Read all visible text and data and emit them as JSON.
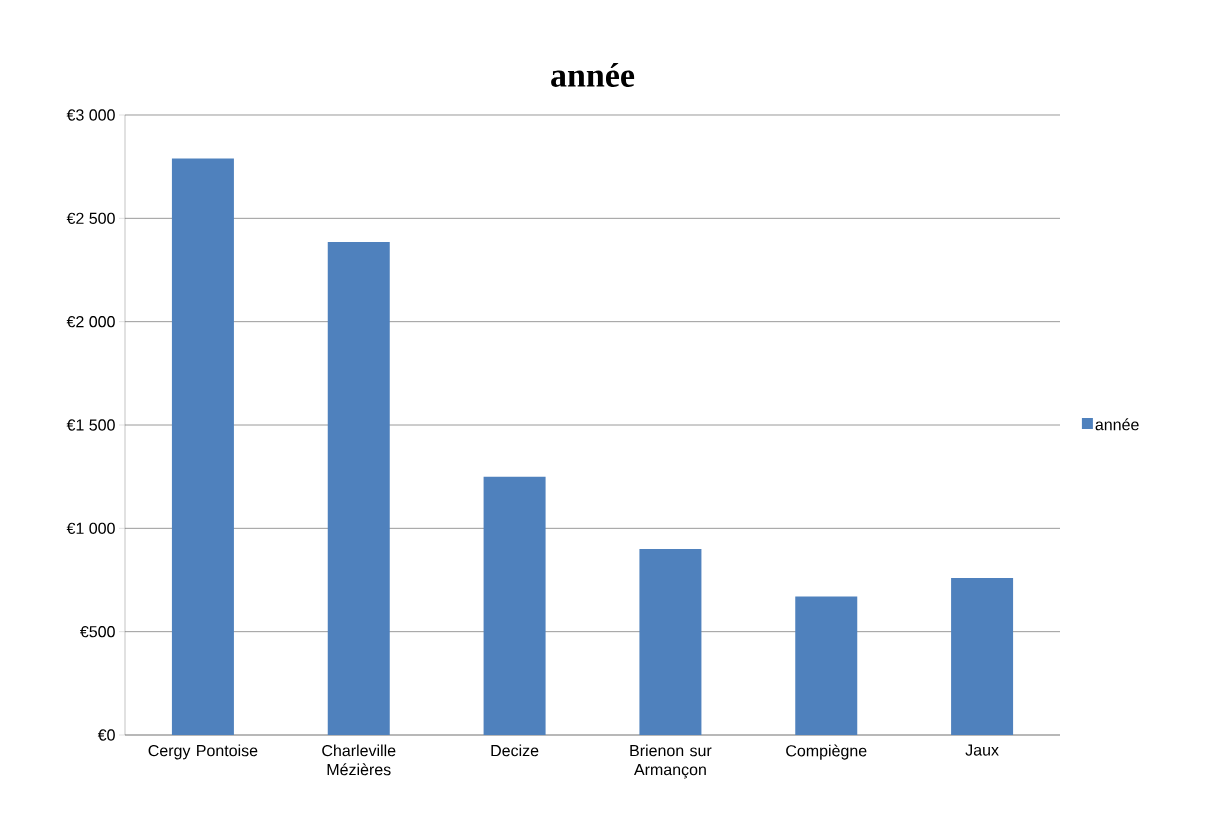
{
  "chart_data": {
    "type": "bar",
    "title": "année",
    "categories": [
      "Cergy Pontoise",
      "Charleville Mézières",
      "Decize",
      "Brienon sur Armançon",
      "Compiègne",
      "Jaux"
    ],
    "series": [
      {
        "name": "année",
        "color": "#4f81bd",
        "values": [
          2790,
          2385,
          1250,
          900,
          670,
          760
        ]
      }
    ],
    "ylim": [
      0,
      3000
    ],
    "yticks": [
      {
        "value": 0,
        "label": "€0"
      },
      {
        "value": 500,
        "label": "€500"
      },
      {
        "value": 1000,
        "label": "€1 000"
      },
      {
        "value": 1500,
        "label": "€1 500"
      },
      {
        "value": 2000,
        "label": "€2 000"
      },
      {
        "value": 2500,
        "label": "€2 500"
      },
      {
        "value": 3000,
        "label": "€3 000"
      }
    ],
    "grid": "y",
    "legend": "right"
  }
}
